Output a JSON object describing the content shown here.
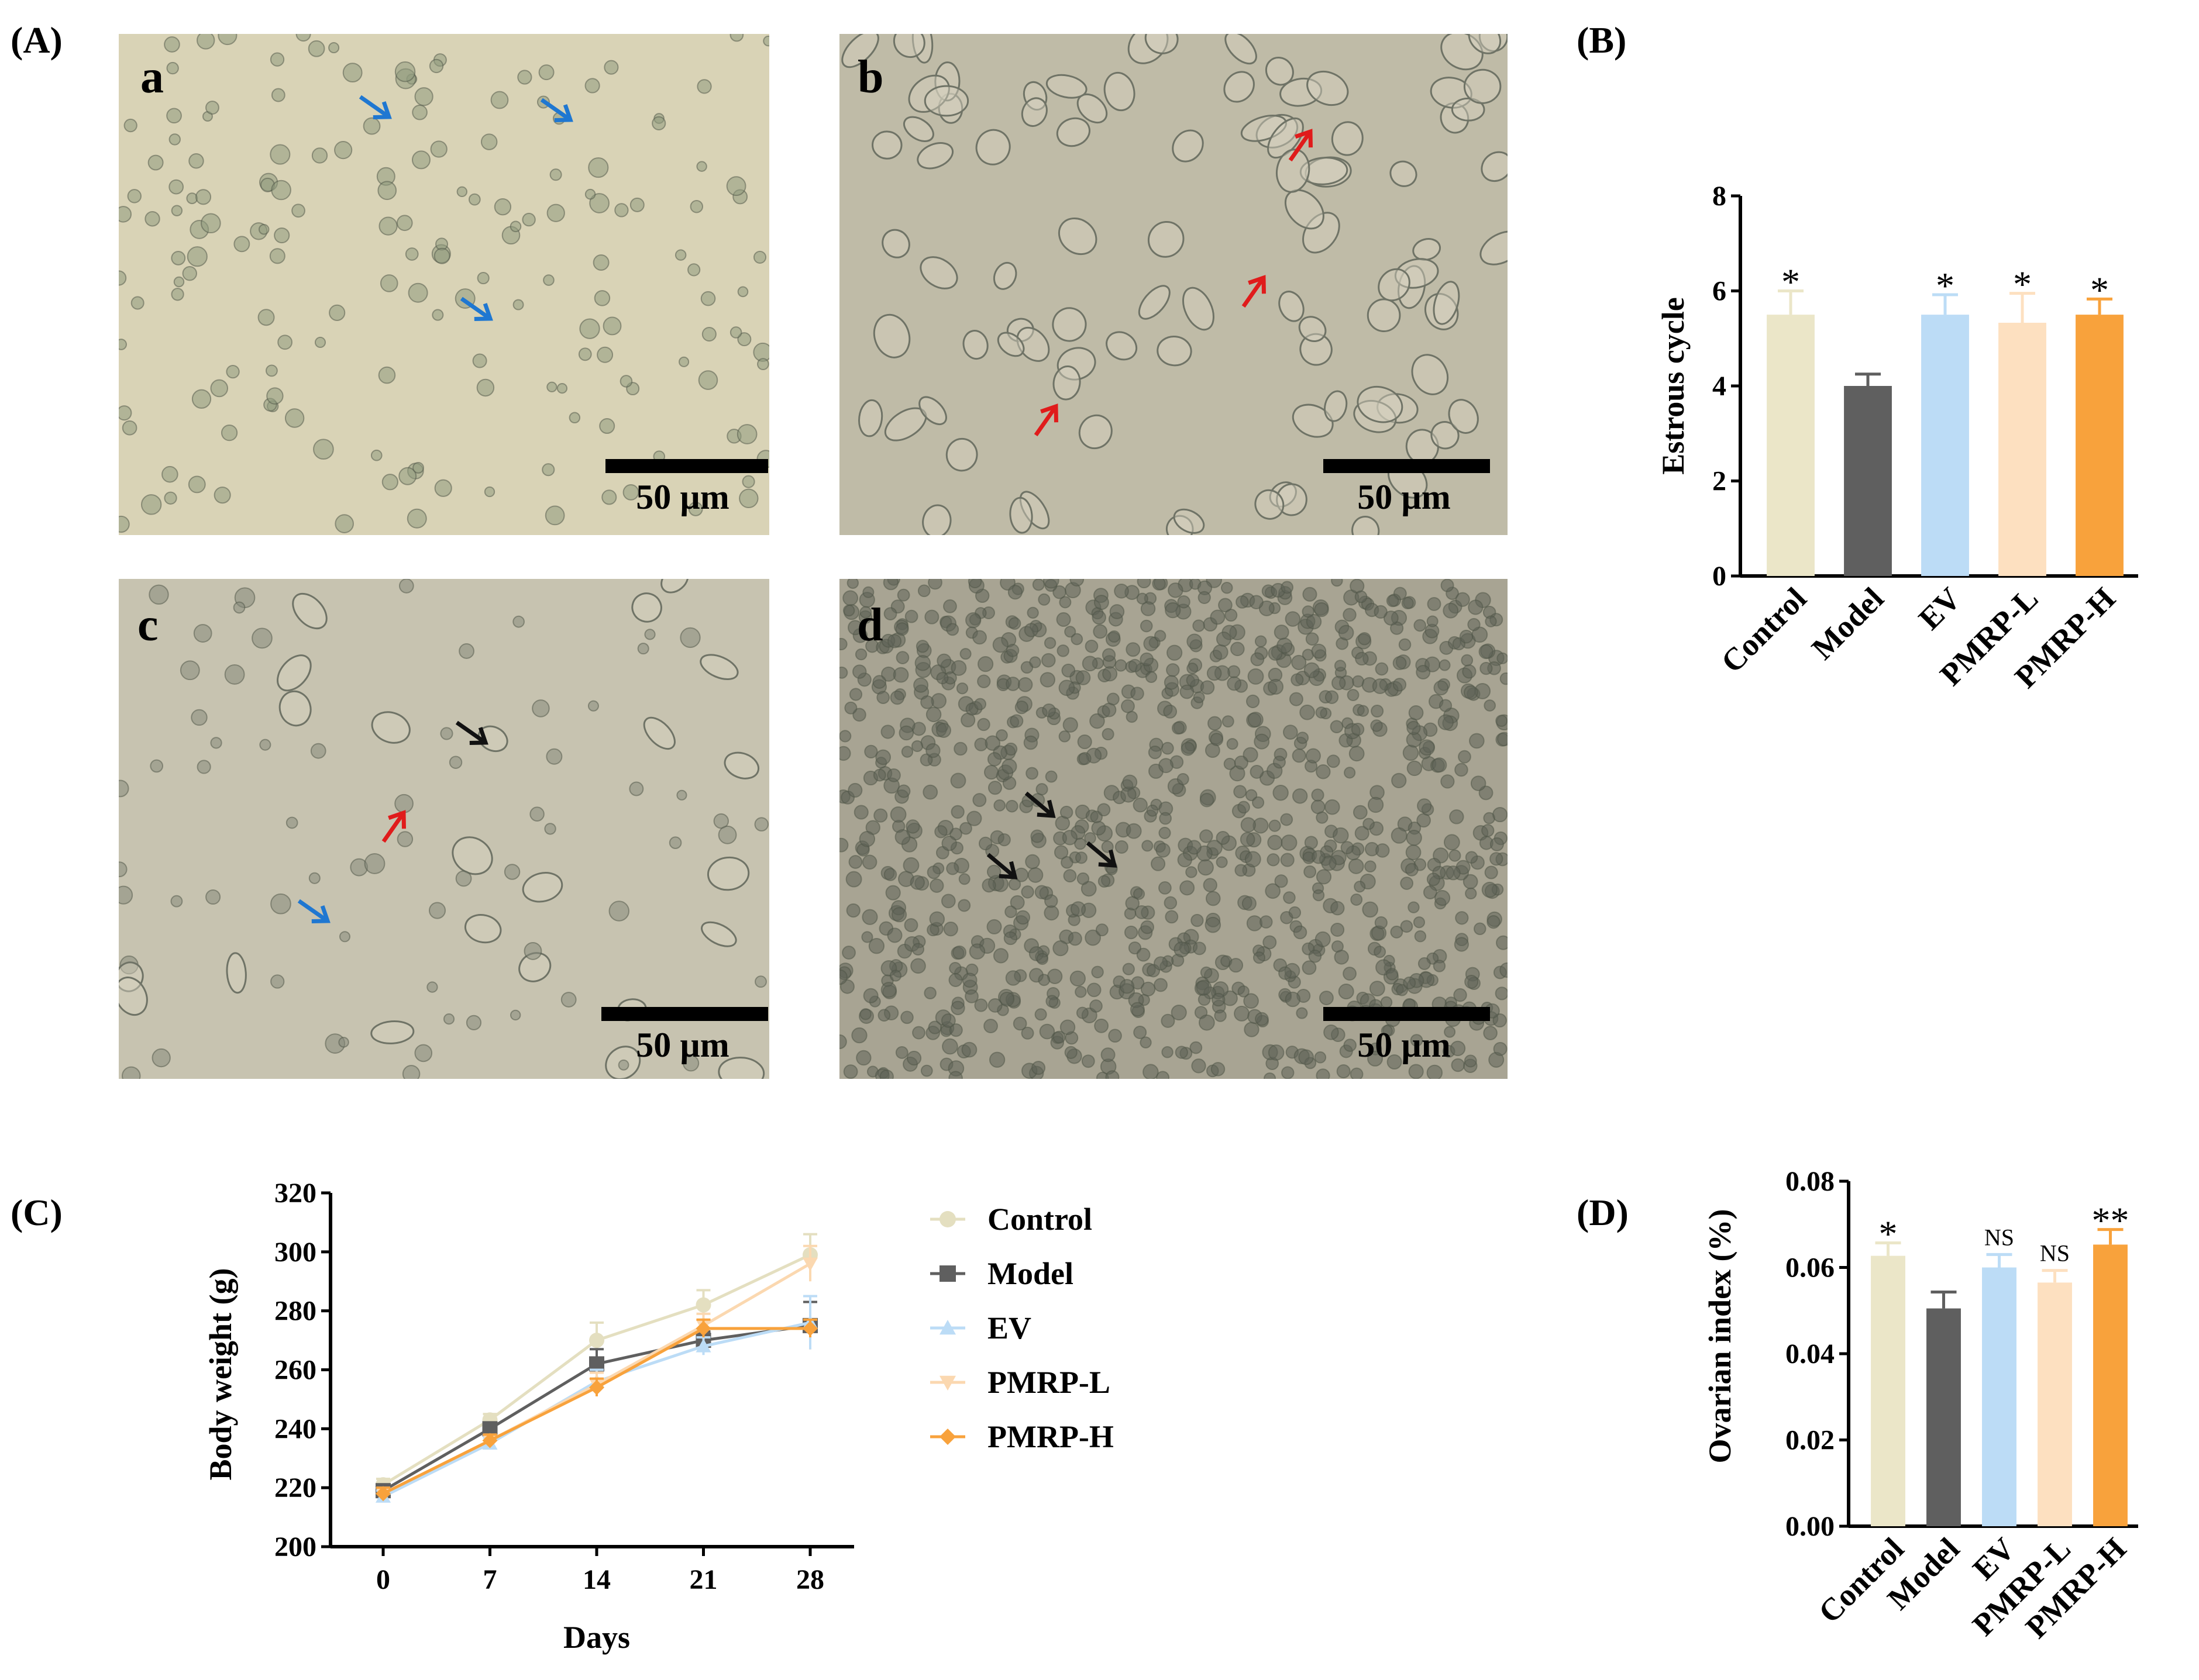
{
  "panel_labels": {
    "A": "(A)",
    "B": "(B)",
    "C": "(C)",
    "D": "(D)"
  },
  "micrographs": [
    {
      "label": "a",
      "scale_bar": "50 µm",
      "tone": "#d9d3b6",
      "cell_color": "#8f9a7e",
      "arrows": [
        {
          "color": "#1f77d1"
        },
        {
          "color": "#1f77d1"
        },
        {
          "color": "#1f77d1"
        }
      ]
    },
    {
      "label": "b",
      "scale_bar": "50 µm",
      "tone": "#bfbba7",
      "cell_color": "#7c8072",
      "arrows": [
        {
          "color": "#e01b1b"
        },
        {
          "color": "#e01b1b"
        },
        {
          "color": "#e01b1b"
        }
      ]
    },
    {
      "label": "c",
      "scale_bar": "50 µm",
      "tone": "#c7c3b0",
      "cell_color": "#868a7c",
      "arrows": [
        {
          "color": "#111111"
        },
        {
          "color": "#e01b1b"
        },
        {
          "color": "#1f77d1"
        }
      ]
    },
    {
      "label": "d",
      "scale_bar": "50 µm",
      "tone": "#a8a493",
      "cell_color": "#5e6358",
      "arrows": [
        {
          "color": "#111111"
        },
        {
          "color": "#111111"
        },
        {
          "color": "#111111"
        }
      ]
    }
  ],
  "chart_data": [
    {
      "id": "B",
      "type": "bar",
      "categories": [
        "Control",
        "Model",
        "EV",
        "PMRP-L",
        "PMRP-H"
      ],
      "values": [
        5.5,
        4.0,
        5.5,
        5.33,
        5.5
      ],
      "errors": [
        0.5,
        0.25,
        0.42,
        0.62,
        0.33
      ],
      "annotations": [
        "*",
        "",
        "*",
        "*",
        "*"
      ],
      "colors": [
        "#ebe6c8",
        "#5f5f5f",
        "#bcdcf6",
        "#fde0c0",
        "#f8a23c"
      ],
      "ylabel": "Estrous cycle",
      "ylim": [
        0,
        8
      ],
      "yticks": [
        "0",
        "2",
        "4",
        "6",
        "8"
      ]
    },
    {
      "id": "C",
      "type": "line",
      "x": [
        0,
        7,
        14,
        21,
        28
      ],
      "xticks": [
        "0",
        "7",
        "14",
        "21",
        "28"
      ],
      "xlabel": "Days",
      "ylabel": "Body weight (g)",
      "ylim": [
        200,
        320
      ],
      "yticks": [
        "200",
        "220",
        "240",
        "260",
        "280",
        "300",
        "320"
      ],
      "series": [
        {
          "name": "Control",
          "values": [
            221,
            243,
            270,
            282,
            299
          ],
          "errors": [
            2,
            2,
            6,
            5,
            7
          ],
          "color": "#e4dfc0",
          "marker": "circle"
        },
        {
          "name": "Model",
          "values": [
            219,
            240,
            262,
            270,
            275
          ],
          "errors": [
            2,
            2,
            5,
            3,
            8
          ],
          "color": "#5f5f5f",
          "marker": "square"
        },
        {
          "name": "EV",
          "values": [
            217,
            235,
            256,
            268,
            276
          ],
          "errors": [
            2,
            2,
            4,
            3,
            9
          ],
          "color": "#bcdcf6",
          "marker": "triangle-up"
        },
        {
          "name": "PMRP-L",
          "values": [
            218,
            236,
            255,
            275,
            296
          ],
          "errors": [
            2,
            2,
            4,
            4,
            6
          ],
          "color": "#fbd8b0",
          "marker": "triangle-down"
        },
        {
          "name": "PMRP-H",
          "values": [
            218,
            236,
            254,
            274,
            274
          ],
          "errors": [
            2,
            2,
            3,
            3,
            3
          ],
          "color": "#f8a23c",
          "marker": "diamond"
        }
      ],
      "legend": "right"
    },
    {
      "id": "D",
      "type": "bar",
      "categories": [
        "Control",
        "Model",
        "EV",
        "PMRP-L",
        "PMRP-H"
      ],
      "values": [
        0.0627,
        0.0505,
        0.06,
        0.0565,
        0.0653
      ],
      "errors": [
        0.003,
        0.0038,
        0.003,
        0.0028,
        0.0035
      ],
      "annotations": [
        "*",
        "",
        "NS",
        "NS",
        "**"
      ],
      "colors": [
        "#ebe6c8",
        "#5f5f5f",
        "#bcdcf6",
        "#fde0c0",
        "#f8a23c"
      ],
      "ylabel": "Ovarian index (%)",
      "ylim": [
        0,
        0.08
      ],
      "yticks": [
        "0.00",
        "0.02",
        "0.04",
        "0.06",
        "0.08"
      ]
    }
  ]
}
